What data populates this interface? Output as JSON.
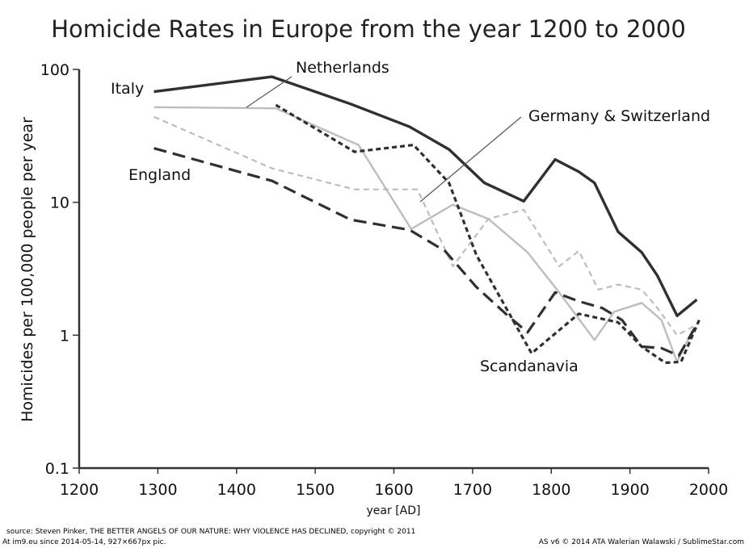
{
  "chart_data": {
    "type": "line",
    "title": "Homicide Rates in Europe from the year 1200 to 2000",
    "xlabel": "year [AD]",
    "ylabel": "Homicides per 100,000 people per year",
    "xlim": [
      1200,
      2000
    ],
    "ylim": [
      0.1,
      100
    ],
    "yscale": "log",
    "x_ticks": [
      "1200",
      "1300",
      "1400",
      "1500",
      "1600",
      "1700",
      "1800",
      "1900",
      "2000"
    ],
    "y_ticks": [
      "0.1",
      "1",
      "10",
      "100"
    ],
    "legend": "inline labels with leader lines",
    "series": [
      {
        "name": "Italy",
        "style": "solid-dark",
        "points": [
          [
            1295,
            68
          ],
          [
            1445,
            88
          ],
          [
            1545,
            55
          ],
          [
            1620,
            37
          ],
          [
            1670,
            25
          ],
          [
            1715,
            14
          ],
          [
            1765,
            10.2
          ],
          [
            1805,
            21
          ],
          [
            1835,
            17
          ],
          [
            1855,
            14
          ],
          [
            1885,
            6
          ],
          [
            1915,
            4.2
          ],
          [
            1935,
            2.8
          ],
          [
            1960,
            1.4
          ],
          [
            1985,
            1.85
          ]
        ]
      },
      {
        "name": "Netherlands",
        "style": "solid-light",
        "points": [
          [
            1295,
            52
          ],
          [
            1450,
            51
          ],
          [
            1555,
            27
          ],
          [
            1622,
            6.3
          ],
          [
            1675,
            9.6
          ],
          [
            1720,
            7.5
          ],
          [
            1770,
            4.2
          ],
          [
            1810,
            2.1
          ],
          [
            1855,
            0.92
          ],
          [
            1880,
            1.5
          ],
          [
            1915,
            1.75
          ],
          [
            1940,
            1.3
          ],
          [
            1960,
            0.63
          ],
          [
            1980,
            1.1
          ]
        ]
      },
      {
        "name": "Germany & Switzerland",
        "style": "dashed-light",
        "points": [
          [
            1295,
            44
          ],
          [
            1445,
            18
          ],
          [
            1550,
            12.5
          ],
          [
            1630,
            12.5
          ],
          [
            1675,
            3.3
          ],
          [
            1720,
            7.5
          ],
          [
            1765,
            8.8
          ],
          [
            1810,
            3.3
          ],
          [
            1835,
            4.3
          ],
          [
            1860,
            2.2
          ],
          [
            1885,
            2.4
          ],
          [
            1915,
            2.2
          ],
          [
            1935,
            1.6
          ],
          [
            1960,
            1.0
          ],
          [
            1985,
            1.2
          ]
        ]
      },
      {
        "name": "Scandanavia",
        "style": "dotted-dark",
        "points": [
          [
            1450,
            54
          ],
          [
            1550,
            24
          ],
          [
            1625,
            27
          ],
          [
            1670,
            14
          ],
          [
            1705,
            4.0
          ],
          [
            1775,
            0.73
          ],
          [
            1835,
            1.45
          ],
          [
            1885,
            1.25
          ],
          [
            1915,
            0.82
          ],
          [
            1945,
            0.62
          ],
          [
            1965,
            0.63
          ],
          [
            1988,
            1.3
          ]
        ]
      },
      {
        "name": "England",
        "style": "longdash-dark",
        "points": [
          [
            1295,
            25.5
          ],
          [
            1445,
            14.5
          ],
          [
            1545,
            7.4
          ],
          [
            1620,
            6.2
          ],
          [
            1665,
            4.3
          ],
          [
            1705,
            2.3
          ],
          [
            1745,
            1.4
          ],
          [
            1770,
            1.05
          ],
          [
            1805,
            2.1
          ],
          [
            1835,
            1.8
          ],
          [
            1865,
            1.6
          ],
          [
            1890,
            1.3
          ],
          [
            1915,
            0.82
          ],
          [
            1940,
            0.8
          ],
          [
            1962,
            0.7
          ],
          [
            1985,
            1.2
          ]
        ]
      }
    ]
  },
  "footer": {
    "source": "source: Steven Pinker, THE BETTER ANGELS OF OUR NATURE: WHY VIOLENCE HAS DECLINED, copyright © 2011",
    "watermark_left": "At im9.eu  since 2014-05-14, 927×667px pic.",
    "watermark_right": "AS v6 © 2014 ATA Walerian Walawski / SublimeStar.com"
  },
  "colors": {
    "dark": "#303030",
    "light": "#bdbdbd",
    "axis": "#222222"
  }
}
